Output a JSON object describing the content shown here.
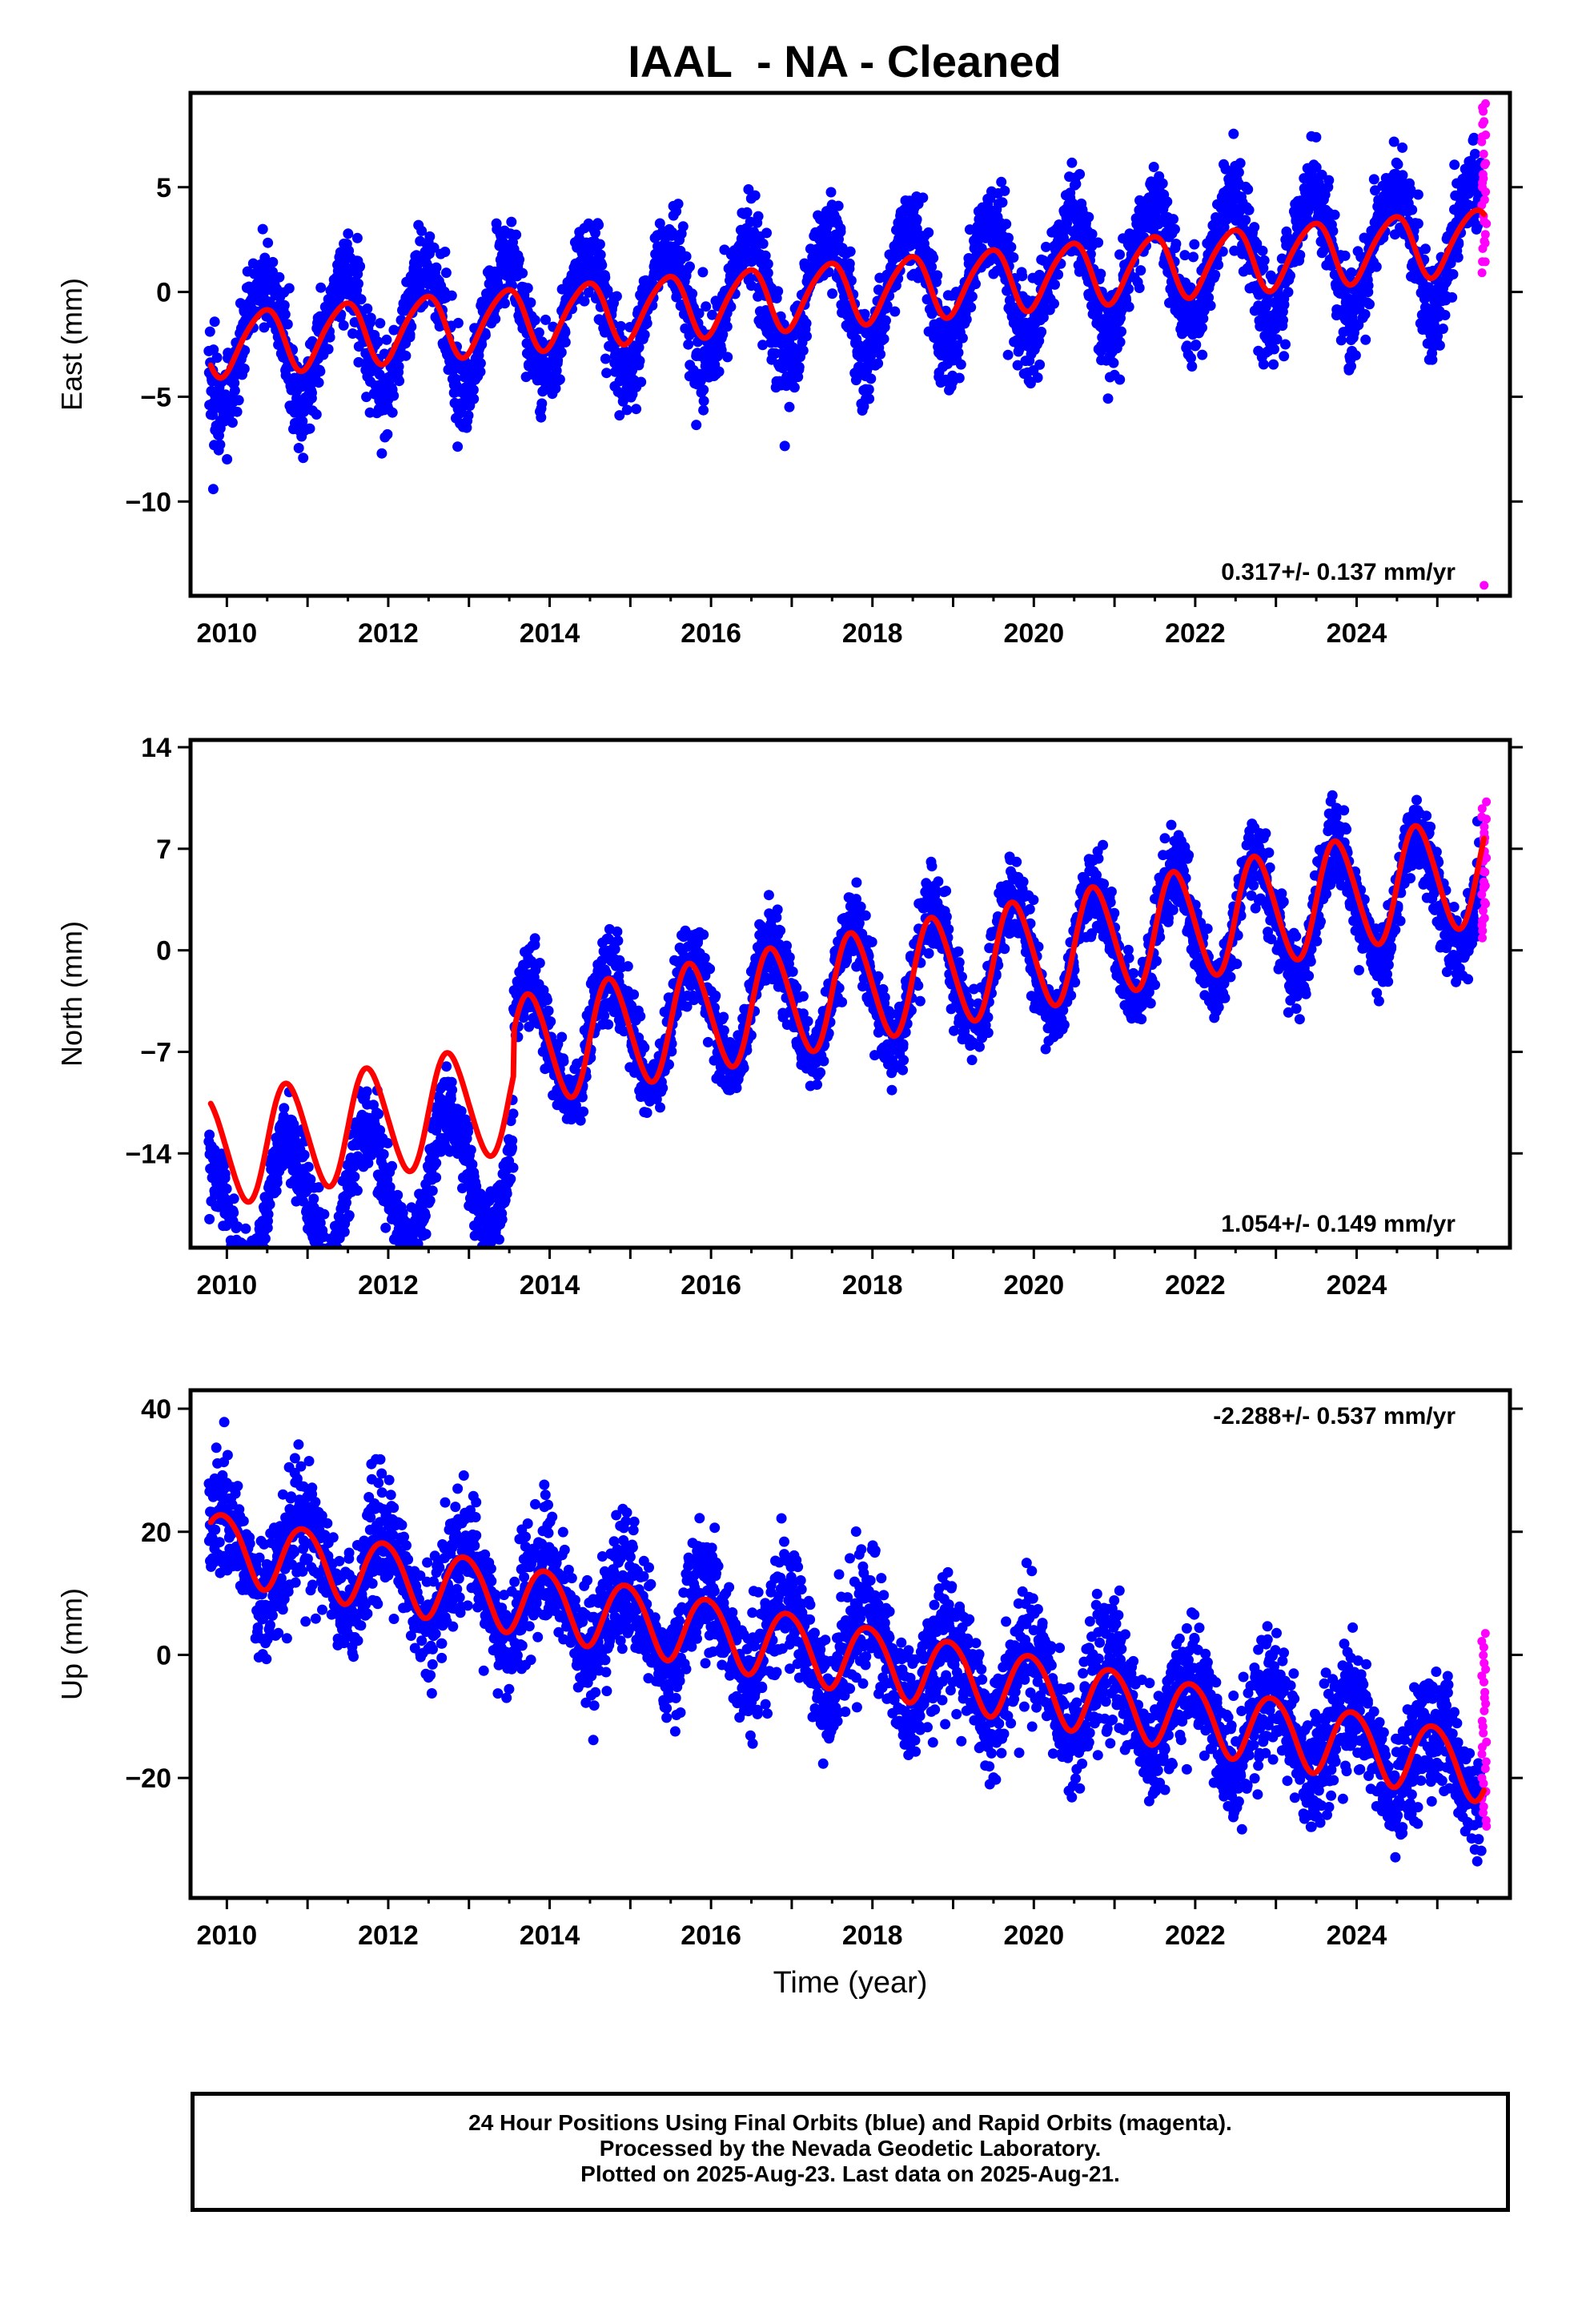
{
  "title": "IAAL  - NA - Cleaned",
  "colors": {
    "final_orbits": "#0000ff",
    "rapid_orbits": "#ff00ff",
    "model": "#ff0000",
    "axes": "#000000"
  },
  "chart_data": [
    {
      "type": "scatter",
      "component": "east",
      "ylabel": "East (mm)",
      "xlabel": "",
      "xlim": [
        2009.55,
        2025.9
      ],
      "ylim": [
        -14.5,
        9.5
      ],
      "xticks": [
        "2010",
        "2012",
        "2014",
        "2016",
        "2018",
        "2020",
        "2022",
        "2024"
      ],
      "yticks": [
        5,
        0,
        -5,
        -10
      ],
      "ytick_labels": [
        "5",
        "0",
        "−5",
        "−10"
      ],
      "rate_label": "0.317+/- 0.137 mm/yr",
      "rate_position": "bottom-right",
      "model": {
        "t0": 2009.8,
        "intercept": -2.5,
        "slope": 0.317,
        "offsets": [],
        "amp_annual": 1.5,
        "phase_annual": 0.2,
        "amp_semiannual": 0.2,
        "phase_semiannual": 0.0
      },
      "scatter_noise": {
        "annual_extra": 1.4,
        "sigma": 1.0,
        "extra_trend": 0.0
      },
      "rapid_orbit_range": [
        1.0,
        9.0
      ],
      "rapid_orbit_outlier": -14.0,
      "series": [
        {
          "name": "Final Orbits",
          "color": "#0000ff"
        },
        {
          "name": "Rapid Orbits",
          "color": "#ff00ff"
        },
        {
          "name": "Model",
          "color": "#ff0000"
        }
      ]
    },
    {
      "type": "scatter",
      "component": "north",
      "ylabel": "North (mm)",
      "xlabel": "",
      "xlim": [
        2009.55,
        2025.9
      ],
      "ylim": [
        -20.5,
        14.5
      ],
      "xticks": [
        "2010",
        "2012",
        "2014",
        "2016",
        "2018",
        "2020",
        "2022",
        "2024"
      ],
      "yticks": [
        14,
        7,
        0,
        -7,
        -14
      ],
      "ytick_labels": [
        "14",
        "7",
        "0",
        "−7",
        "−14"
      ],
      "rate_label": "1.054+/- 0.149 mm/yr",
      "rate_position": "bottom-right",
      "model": {
        "t0": 2009.8,
        "intercept": -14.0,
        "slope": 1.054,
        "offsets": [
          [
            2013.55,
            3.0
          ]
        ],
        "amp_annual": 3.8,
        "phase_annual": 0.5,
        "amp_semiannual": 0.3,
        "phase_semiannual": 0.0
      },
      "scatter_noise": {
        "annual_extra": 0.5,
        "sigma": 1.2,
        "extra_trend": -0.9,
        "pre_offset_shift": -5.0,
        "offset_year": 2013.55
      },
      "rapid_orbit_range": [
        1.0,
        10.0
      ],
      "series": [
        {
          "name": "Final Orbits",
          "color": "#0000ff"
        },
        {
          "name": "Rapid Orbits",
          "color": "#ff00ff"
        },
        {
          "name": "Model",
          "color": "#ff0000"
        }
      ]
    },
    {
      "type": "scatter",
      "component": "up",
      "ylabel": "Up (mm)",
      "xlabel": "Time (year)",
      "xlim": [
        2009.55,
        2025.9
      ],
      "ylim": [
        -39.5,
        43.0
      ],
      "xticks": [
        "2010",
        "2012",
        "2014",
        "2016",
        "2018",
        "2020",
        "2022",
        "2024"
      ],
      "yticks": [
        40,
        20,
        0,
        -20
      ],
      "ytick_labels": [
        "40",
        "20",
        "0",
        "−20"
      ],
      "rate_label": "-2.288+/- 0.537 mm/yr",
      "rate_position": "top-right",
      "model": {
        "t0": 2009.8,
        "intercept": 18.0,
        "slope": -2.288,
        "offsets": [],
        "amp_annual": 5.5,
        "phase_annual": 0.7,
        "amp_semiannual": 0.5,
        "phase_semiannual": 0.1
      },
      "scatter_noise": {
        "annual_extra": 1.5,
        "sigma": 4.5,
        "extra_trend": 0.0
      },
      "rapid_orbit_range": [
        -28.0,
        3.5
      ],
      "series": [
        {
          "name": "Final Orbits",
          "color": "#0000ff"
        },
        {
          "name": "Rapid Orbits",
          "color": "#ff00ff"
        },
        {
          "name": "Model",
          "color": "#ff0000"
        }
      ]
    }
  ],
  "footer": {
    "line1": "24 Hour Positions Using Final Orbits (blue) and Rapid Orbits (magenta).",
    "line2": "Processed by the Nevada Geodetic Laboratory.",
    "line3": "Plotted on 2025-Aug-23. Last data on 2025-Aug-21."
  }
}
